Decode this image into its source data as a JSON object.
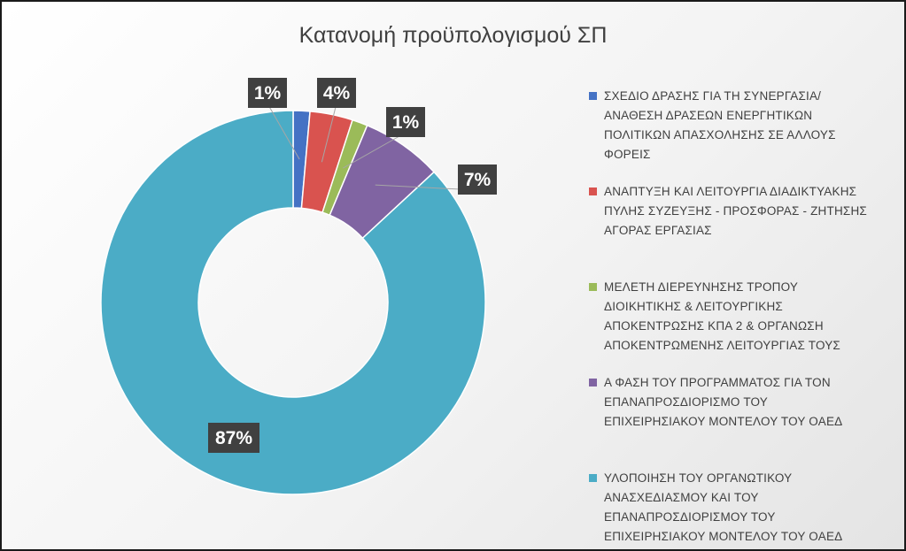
{
  "chart_data": {
    "type": "pie",
    "variant": "donut",
    "title": "Κατανομή προϋπολογισμού  ΣΠ",
    "legend_position": "right",
    "categories": [
      "ΣΧΕΔΙΟ ΔΡΑΣΗΣ ΓΙΑ ΤΗ ΣΥΝΕΡΓΑΣΙΑ/\nΑΝΑΘΕΣΗ ΔΡΑΣΕΩΝ ΕΝΕΡΓΗΤΙΚΩΝ\nΠΟΛΙΤΙΚΩΝ ΑΠΑΣΧΟΛΗΣΗΣ ΣΕ ΑΛΛΟΥΣ\nΦΟΡΕΙΣ",
      "ΑΝΑΠΤΥΞΗ ΚΑΙ ΛΕΙΤΟΥΡΓΙΑ ΔΙΑΔΙΚΤΥΑΚΗΣ\nΠΥΛΗΣ ΣΥΖΕΥΞΗΣ - ΠΡΟΣΦΟΡΑΣ - ΖΗΤΗΣΗΣ\nΑΓΟΡΑΣ ΕΡΓΑΣΙΑΣ",
      "ΜΕΛΕΤΗ ΔΙΕΡΕΥΝΗΣΗΣ  ΤΡΟΠΟΥ\nΔΙΟΙΚΗΤΙΚΗΣ & ΛΕΙΤΟΥΡΓΙΚΗΣ\nΑΠΟΚΕΝΤΡΩΣΗΣ  ΚΠΑ 2   & ΟΡΓΑΝΩΣΗ\nΑΠΟΚΕΝΤΡΩΜΕΝΗΣ ΛΕΙΤΟΥΡΓΙΑΣ ΤΟΥΣ",
      "Α ΦΑΣΗ ΤΟΥ ΠΡΟΓΡΑΜΜΑΤΟΣ ΓΙΑ ΤΟΝ\nΕΠΑΝΑΠΡΟΣΔΙΟΡΙΣΜΟ ΤΟΥ\nΕΠΙΧΕΙΡΗΣΙΑΚΟΥ ΜΟΝΤΕΛΟΥ ΤΟΥ ΟΑΕΔ",
      "ΥΛΟΠΟΙΗΣΗ ΤΟΥ ΟΡΓΑΝΩΤΙΚΟΥ\nΑΝΑΣΧΕΔΙΑΣΜΟΥ ΚΑΙ ΤΟΥ\nΕΠΑΝΑΠΡΟΣΔΙΟΡΙΣΜΟΥ ΤΟΥ\nΕΠΙΧΕΙΡΗΣΙΑΚΟΥ ΜΟΝΤΕΛΟΥ ΤΟΥ ΟΑΕΔ"
    ],
    "values": [
      1.4,
      3.6,
      1.3,
      6.8,
      86.9
    ],
    "data_labels": [
      "1%",
      "4%",
      "1%",
      "7%",
      "87%"
    ],
    "colors": [
      "#4472c4",
      "#d9534f",
      "#9bbb59",
      "#8064a2",
      "#4bacc6"
    ]
  }
}
